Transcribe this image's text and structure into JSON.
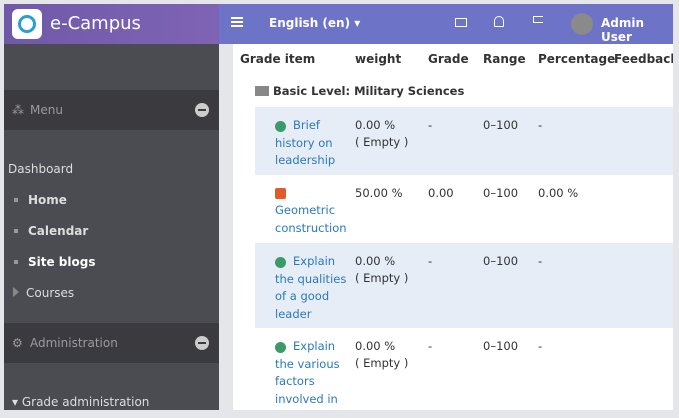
{
  "header": {
    "brand": "e-Campus",
    "language": "English (en)",
    "user": "Admin User"
  },
  "sidebar": {
    "menu": "Menu",
    "dashboard": "Dashboard",
    "links": [
      "Home",
      "Calendar",
      "Site blogs",
      "Courses"
    ],
    "administration": "Administration",
    "grade_admin": "Grade administration"
  },
  "table": {
    "columns": [
      "Grade item",
      "weight",
      "Grade",
      "Range",
      "Percentage",
      "Feedback"
    ],
    "category": "Basic Level: Military Sciences",
    "rows": [
      {
        "item": "Brief history on leadership",
        "weight": "0.00 %",
        "note": "( Empty )",
        "grade": "-",
        "range": "0–100",
        "percentage": "-"
      },
      {
        "item": "Geometric construction",
        "weight": "50.00 %",
        "grade": "0.00",
        "range": "0–100",
        "percentage": "0.00 %"
      },
      {
        "item": "Explain the qualities of a good leader",
        "weight": "0.00 %",
        "note": "( Empty )",
        "grade": "-",
        "range": "0–100",
        "percentage": "-"
      },
      {
        "item": "Explain the various factors involved in",
        "weight": "0.00 %",
        "note": "( Empty )",
        "grade": "-",
        "range": "0–100",
        "percentage": "-"
      }
    ]
  }
}
